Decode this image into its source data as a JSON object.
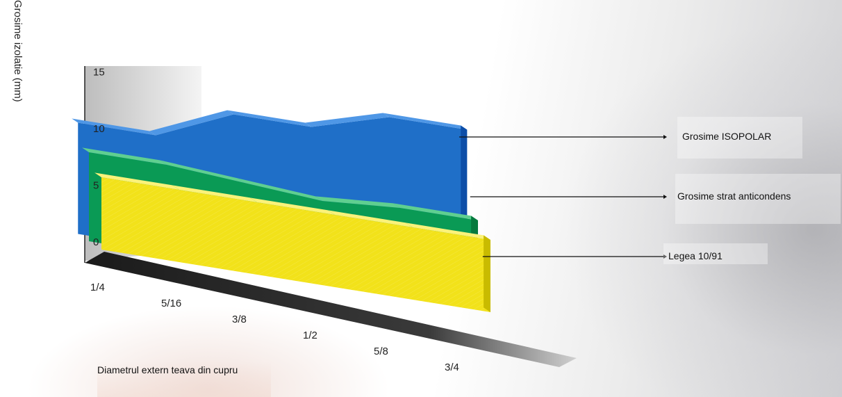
{
  "chart_data": {
    "type": "area",
    "title": "",
    "ylabel": "Grosime izolatie (mm)",
    "xlabel": "Diametrul extern teava din cupru",
    "ylim": [
      0,
      15
    ],
    "yticks": [
      "0",
      "5",
      "10",
      "15"
    ],
    "categories": [
      "1/4",
      "5/16",
      "3/8",
      "1/2",
      "5/8",
      "3/4"
    ],
    "series": [
      {
        "name": "Grosime ISOPOLAR",
        "color": "#1f6fc8",
        "values": [
          10,
          10,
          13,
          13,
          15,
          15
        ]
      },
      {
        "name": "Grosime strat anticondens",
        "color": "#0a9a55",
        "values": [
          8,
          8,
          7.5,
          7,
          7.5,
          7.5
        ]
      },
      {
        "name": "Legea 10/91",
        "color": "#f2e21a",
        "values": [
          6.5,
          6.5,
          6.5,
          6.5,
          6.5,
          6.5
        ]
      }
    ],
    "legend": [
      "Grosime ISOPOLAR",
      "Grosime strat anticondens",
      "Legea 10/91"
    ],
    "legend_position": "right"
  }
}
